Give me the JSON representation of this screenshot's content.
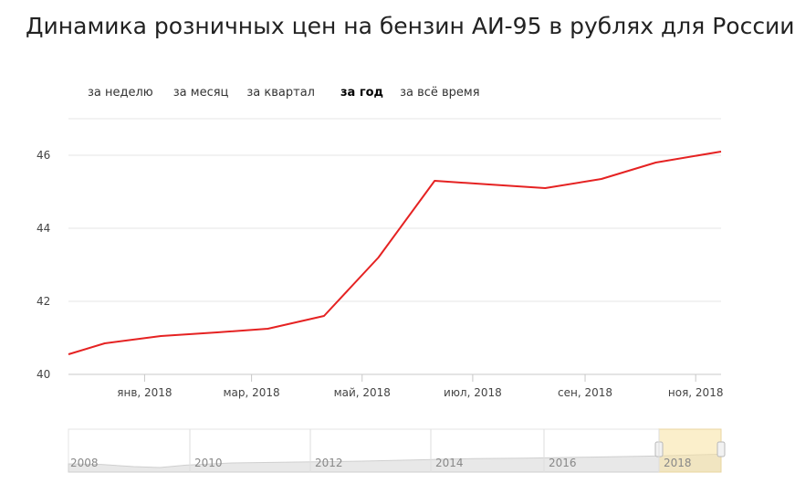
{
  "title": "Динамика розничных цен на бензин АИ-95 в рублях для России",
  "periods": [
    {
      "label": "за неделю",
      "active": false
    },
    {
      "label": "за месяц",
      "active": false
    },
    {
      "label": "за квартал",
      "active": false
    },
    {
      "label": "за год",
      "active": true
    },
    {
      "label": "за всё время",
      "active": false
    }
  ],
  "chart_data": {
    "type": "line",
    "title": "Динамика розничных цен на бензин АИ-95 в рублях для России",
    "xlabel": "",
    "ylabel": "",
    "x": [
      "2017-11-20",
      "2017-12-10",
      "2018-01-10",
      "2018-02-10",
      "2018-03-10",
      "2018-04-10",
      "2018-05-10",
      "2018-06-10",
      "2018-07-10",
      "2018-08-10",
      "2018-09-10",
      "2018-10-10",
      "2018-11-15"
    ],
    "series": [
      {
        "values": [
          40.55,
          40.85,
          41.05,
          41.15,
          41.25,
          41.6,
          43.2,
          45.3,
          45.2,
          45.1,
          45.35,
          45.8,
          46.1
        ],
        "color": "#e52222"
      }
    ],
    "ylim": [
      40,
      47
    ],
    "yticks": [
      40,
      42,
      44,
      46
    ],
    "xticks": [
      {
        "label": "янв, 2018",
        "date": "2018-01-01"
      },
      {
        "label": "мар, 2018",
        "date": "2018-03-01"
      },
      {
        "label": "май, 2018",
        "date": "2018-05-01"
      },
      {
        "label": "июл, 2018",
        "date": "2018-07-01"
      },
      {
        "label": "сен, 2018",
        "date": "2018-09-01"
      },
      {
        "label": "ноя, 2018",
        "date": "2018-11-01"
      }
    ],
    "grid": true,
    "navigator": {
      "years": [
        "2008",
        "2010",
        "2012",
        "2014",
        "2016",
        "2018"
      ],
      "selected_range": [
        "2017-11",
        "2018-11"
      ]
    }
  }
}
